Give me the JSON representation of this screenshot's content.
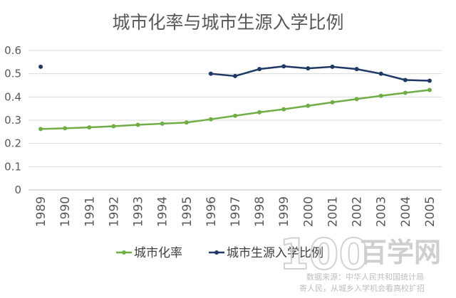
{
  "chart_data": {
    "type": "line",
    "title": "城市化率与城市生源入学比例",
    "xlabel": "",
    "ylabel": "",
    "categories": [
      "1989",
      "1990",
      "1991",
      "1992",
      "1993",
      "1994",
      "1995",
      "1996",
      "1997",
      "1998",
      "1999",
      "2000",
      "2001",
      "2002",
      "2003",
      "2004",
      "2005"
    ],
    "ylim": [
      0,
      0.6
    ],
    "yticks": [
      "0",
      "0.1",
      "0.2",
      "0.3",
      "0.4",
      "0.5",
      "0.6"
    ],
    "grid": true,
    "legend_position": "bottom",
    "series": [
      {
        "name": "城市化率",
        "color": "#70ad47",
        "values": [
          0.262,
          0.265,
          0.269,
          0.274,
          0.28,
          0.285,
          0.29,
          0.304,
          0.319,
          0.334,
          0.347,
          0.362,
          0.377,
          0.391,
          0.405,
          0.418,
          0.43
        ]
      },
      {
        "name": "城市生源入学比例",
        "color": "#1f3864",
        "values": [
          0.53,
          null,
          null,
          null,
          null,
          null,
          null,
          0.5,
          0.49,
          0.52,
          0.532,
          0.523,
          0.53,
          0.52,
          0.5,
          0.473,
          0.47
        ]
      }
    ]
  },
  "watermark": {
    "logo_number": "100",
    "logo_text": "百学网",
    "source_line1": "数据来源：中华人民共和国统计局",
    "source_line2": "寄人民，从城乡入学机会看高校扩招"
  }
}
